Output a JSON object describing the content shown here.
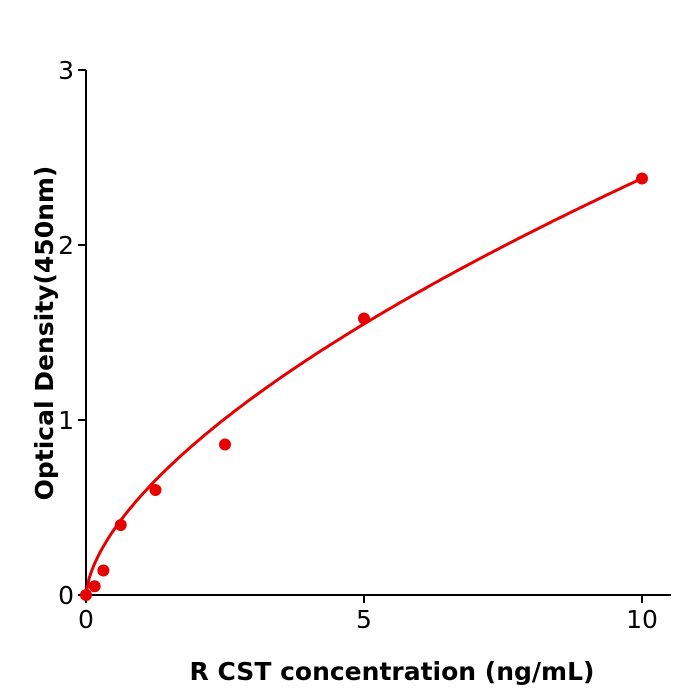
{
  "chart_data": {
    "type": "scatter",
    "title": "",
    "xlabel": "R  CST concentration (ng/mL)",
    "ylabel": "Optical Density(450nm)",
    "xlim": [
      0,
      10.5
    ],
    "ylim": [
      0,
      3
    ],
    "xticks": [
      0,
      5,
      10
    ],
    "yticks": [
      0,
      1,
      2,
      3
    ],
    "grid": false,
    "color": "#e60000",
    "points": {
      "x": [
        0,
        0.156,
        0.3125,
        0.625,
        1.25,
        2.5,
        5,
        10
      ],
      "y": [
        0.0,
        0.05,
        0.14,
        0.4,
        0.6,
        0.86,
        1.58,
        2.38
      ]
    },
    "fit_curve": {
      "type": "power",
      "a": 0.571,
      "b": 0.62
    }
  }
}
